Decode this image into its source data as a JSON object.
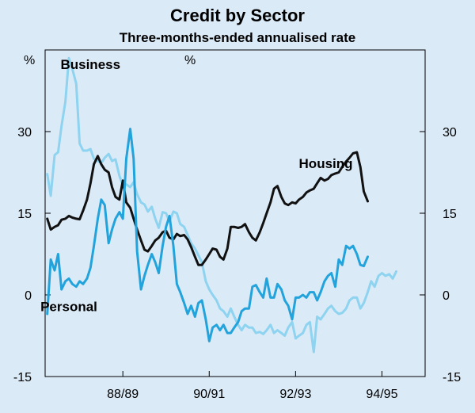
{
  "chart_data": {
    "type": "line",
    "title": "Credit by Sector",
    "subtitle": "Three-months-ended annualised rate",
    "y_unit_left": "%",
    "y_unit_right": "%",
    "ylim": [
      -15,
      45
    ],
    "yticks": [
      -15,
      0,
      15,
      30
    ],
    "xlim": [
      1986.7,
      1995.5
    ],
    "xticks": [
      {
        "label": "88/89",
        "x": 1988.5
      },
      {
        "label": "90/91",
        "x": 1990.5
      },
      {
        "label": "92/93",
        "x": 1992.5
      },
      {
        "label": "94/95",
        "x": 1994.5
      }
    ],
    "grid": false,
    "series": [
      {
        "name": "Business",
        "color": "#8ed3f0",
        "label_x": 1987.75,
        "label_y": 41.5,
        "values": [
          [
            1986.75,
            22.2
          ],
          [
            1986.83,
            18.2
          ],
          [
            1986.92,
            25.7
          ],
          [
            1987.0,
            26.2
          ],
          [
            1987.08,
            31.0
          ],
          [
            1987.17,
            35.5
          ],
          [
            1987.25,
            43.5
          ],
          [
            1987.33,
            41.5
          ],
          [
            1987.42,
            38.8
          ],
          [
            1987.5,
            27.8
          ],
          [
            1987.58,
            26.5
          ],
          [
            1987.67,
            26.5
          ],
          [
            1987.75,
            26.8
          ],
          [
            1987.83,
            25.0
          ],
          [
            1987.92,
            24.6
          ],
          [
            1988.0,
            24.2
          ],
          [
            1988.08,
            25.2
          ],
          [
            1988.17,
            25.9
          ],
          [
            1988.25,
            24.6
          ],
          [
            1988.33,
            24.9
          ],
          [
            1988.42,
            21.9
          ],
          [
            1988.5,
            20.1
          ],
          [
            1988.58,
            20.3
          ],
          [
            1988.67,
            19.8
          ],
          [
            1988.75,
            20.7
          ],
          [
            1988.83,
            18.5
          ],
          [
            1988.92,
            17.0
          ],
          [
            1989.0,
            16.6
          ],
          [
            1989.08,
            15.3
          ],
          [
            1989.17,
            16.2
          ],
          [
            1989.25,
            14.0
          ],
          [
            1989.33,
            12.3
          ],
          [
            1989.42,
            15.2
          ],
          [
            1989.5,
            15.0
          ],
          [
            1989.58,
            13.5
          ],
          [
            1989.67,
            15.3
          ],
          [
            1989.75,
            15.0
          ],
          [
            1989.83,
            13.0
          ],
          [
            1989.92,
            12.5
          ],
          [
            1990.0,
            11.0
          ],
          [
            1990.08,
            9.5
          ],
          [
            1990.17,
            8.5
          ],
          [
            1990.25,
            7.3
          ],
          [
            1990.33,
            6.0
          ],
          [
            1990.42,
            2.5
          ],
          [
            1990.5,
            1.0
          ],
          [
            1990.58,
            0.0
          ],
          [
            1990.67,
            -1.0
          ],
          [
            1990.75,
            -2.5
          ],
          [
            1990.83,
            -3.0
          ],
          [
            1990.92,
            -4.0
          ],
          [
            1991.0,
            -2.5
          ],
          [
            1991.08,
            -4.0
          ],
          [
            1991.17,
            -5.5
          ],
          [
            1991.25,
            -6.5
          ],
          [
            1991.33,
            -5.5
          ],
          [
            1991.42,
            -6.0
          ],
          [
            1991.5,
            -6.0
          ],
          [
            1991.58,
            -7.0
          ],
          [
            1991.67,
            -6.8
          ],
          [
            1991.75,
            -7.2
          ],
          [
            1991.83,
            -6.5
          ],
          [
            1991.92,
            -5.5
          ],
          [
            1992.0,
            -7.0
          ],
          [
            1992.08,
            -6.5
          ],
          [
            1992.17,
            -7.0
          ],
          [
            1992.25,
            -7.5
          ],
          [
            1992.33,
            -6.0
          ],
          [
            1992.42,
            -5.0
          ],
          [
            1992.5,
            -8.0
          ],
          [
            1992.58,
            -7.5
          ],
          [
            1992.67,
            -7.0
          ],
          [
            1992.75,
            -5.5
          ],
          [
            1992.83,
            -5.0
          ],
          [
            1992.92,
            -10.5
          ],
          [
            1993.0,
            -4.0
          ],
          [
            1993.08,
            -4.5
          ],
          [
            1993.17,
            -3.5
          ],
          [
            1993.25,
            -2.5
          ],
          [
            1993.33,
            -2.0
          ],
          [
            1993.42,
            -3.0
          ],
          [
            1993.5,
            -3.5
          ],
          [
            1993.58,
            -3.3
          ],
          [
            1993.67,
            -2.5
          ],
          [
            1993.75,
            -1.0
          ],
          [
            1993.83,
            -0.5
          ],
          [
            1993.92,
            -0.5
          ],
          [
            1994.0,
            -2.5
          ],
          [
            1994.08,
            -1.5
          ],
          [
            1994.17,
            0.5
          ],
          [
            1994.25,
            2.5
          ],
          [
            1994.33,
            1.5
          ],
          [
            1994.42,
            3.5
          ],
          [
            1994.5,
            4.0
          ],
          [
            1994.58,
            3.5
          ],
          [
            1994.67,
            3.8
          ],
          [
            1994.75,
            3.0
          ],
          [
            1994.83,
            4.3
          ]
        ]
      },
      {
        "name": "Housing",
        "color": "#111111",
        "label_x": 1993.2,
        "label_y": 23.3,
        "values": [
          [
            1986.75,
            14.0
          ],
          [
            1986.83,
            12.0
          ],
          [
            1986.92,
            12.5
          ],
          [
            1987.0,
            12.8
          ],
          [
            1987.08,
            13.8
          ],
          [
            1987.17,
            14.0
          ],
          [
            1987.25,
            14.5
          ],
          [
            1987.33,
            14.2
          ],
          [
            1987.42,
            14.0
          ],
          [
            1987.5,
            13.9
          ],
          [
            1987.58,
            15.5
          ],
          [
            1987.67,
            17.5
          ],
          [
            1987.75,
            20.5
          ],
          [
            1987.83,
            24.0
          ],
          [
            1987.92,
            25.5
          ],
          [
            1988.0,
            24.0
          ],
          [
            1988.08,
            23.0
          ],
          [
            1988.17,
            22.5
          ],
          [
            1988.25,
            19.8
          ],
          [
            1988.33,
            18.0
          ],
          [
            1988.42,
            17.5
          ],
          [
            1988.5,
            21.0
          ],
          [
            1988.58,
            17.0
          ],
          [
            1988.67,
            16.0
          ],
          [
            1988.75,
            14.0
          ],
          [
            1988.83,
            12.0
          ],
          [
            1988.92,
            10.0
          ],
          [
            1989.0,
            8.3
          ],
          [
            1989.08,
            8.0
          ],
          [
            1989.17,
            9.0
          ],
          [
            1989.25,
            10.0
          ],
          [
            1989.33,
            10.5
          ],
          [
            1989.42,
            11.5
          ],
          [
            1989.5,
            11.8
          ],
          [
            1989.58,
            10.5
          ],
          [
            1989.67,
            10.2
          ],
          [
            1989.75,
            11.2
          ],
          [
            1989.83,
            10.8
          ],
          [
            1989.92,
            11.0
          ],
          [
            1990.0,
            10.2
          ],
          [
            1990.08,
            8.8
          ],
          [
            1990.17,
            7.0
          ],
          [
            1990.25,
            5.5
          ],
          [
            1990.33,
            5.5
          ],
          [
            1990.42,
            6.5
          ],
          [
            1990.5,
            7.5
          ],
          [
            1990.58,
            8.5
          ],
          [
            1990.67,
            8.3
          ],
          [
            1990.75,
            7.0
          ],
          [
            1990.83,
            6.5
          ],
          [
            1990.92,
            8.5
          ],
          [
            1991.0,
            12.5
          ],
          [
            1991.08,
            12.5
          ],
          [
            1991.17,
            12.3
          ],
          [
            1991.25,
            12.5
          ],
          [
            1991.33,
            13.0
          ],
          [
            1991.42,
            11.5
          ],
          [
            1991.5,
            10.5
          ],
          [
            1991.58,
            10.0
          ],
          [
            1991.67,
            11.5
          ],
          [
            1991.75,
            13.2
          ],
          [
            1991.83,
            15.0
          ],
          [
            1991.92,
            17.0
          ],
          [
            1992.0,
            19.5
          ],
          [
            1992.08,
            20.0
          ],
          [
            1992.17,
            18.0
          ],
          [
            1992.25,
            16.8
          ],
          [
            1992.33,
            16.5
          ],
          [
            1992.42,
            17.0
          ],
          [
            1992.5,
            16.8
          ],
          [
            1992.58,
            17.5
          ],
          [
            1992.67,
            18.0
          ],
          [
            1992.75,
            18.8
          ],
          [
            1992.83,
            19.2
          ],
          [
            1992.92,
            19.5
          ],
          [
            1993.0,
            20.5
          ],
          [
            1993.08,
            21.5
          ],
          [
            1993.17,
            21.0
          ],
          [
            1993.25,
            21.3
          ],
          [
            1993.33,
            22.0
          ],
          [
            1993.42,
            22.3
          ],
          [
            1993.5,
            22.5
          ],
          [
            1993.58,
            23.5
          ],
          [
            1993.67,
            24.5
          ],
          [
            1993.75,
            25.2
          ],
          [
            1993.83,
            26.0
          ],
          [
            1993.92,
            26.2
          ],
          [
            1994.0,
            23.5
          ],
          [
            1994.08,
            19.0
          ],
          [
            1994.17,
            17.2
          ]
        ]
      },
      {
        "name": "Personal",
        "color": "#22a3dc",
        "label_x": 1987.25,
        "label_y": -3.0,
        "values": [
          [
            1986.75,
            -3.5
          ],
          [
            1986.83,
            6.5
          ],
          [
            1986.92,
            4.5
          ],
          [
            1987.0,
            7.5
          ],
          [
            1987.08,
            1.0
          ],
          [
            1987.17,
            2.5
          ],
          [
            1987.25,
            3.0
          ],
          [
            1987.33,
            2.0
          ],
          [
            1987.42,
            1.5
          ],
          [
            1987.5,
            2.5
          ],
          [
            1987.58,
            2.0
          ],
          [
            1987.67,
            3.0
          ],
          [
            1987.75,
            5.0
          ],
          [
            1987.83,
            9.0
          ],
          [
            1987.92,
            14.0
          ],
          [
            1988.0,
            17.5
          ],
          [
            1988.08,
            16.5
          ],
          [
            1988.17,
            9.5
          ],
          [
            1988.25,
            12.0
          ],
          [
            1988.33,
            14.0
          ],
          [
            1988.42,
            15.2
          ],
          [
            1988.5,
            14.0
          ],
          [
            1988.58,
            25.0
          ],
          [
            1988.67,
            30.5
          ],
          [
            1988.75,
            25.0
          ],
          [
            1988.83,
            8.0
          ],
          [
            1988.92,
            1.0
          ],
          [
            1989.0,
            3.5
          ],
          [
            1989.08,
            5.5
          ],
          [
            1989.17,
            7.5
          ],
          [
            1989.25,
            6.0
          ],
          [
            1989.33,
            4.0
          ],
          [
            1989.42,
            9.0
          ],
          [
            1989.5,
            12.5
          ],
          [
            1989.58,
            14.5
          ],
          [
            1989.67,
            9.0
          ],
          [
            1989.75,
            2.0
          ],
          [
            1989.83,
            0.5
          ],
          [
            1989.92,
            -1.5
          ],
          [
            1990.0,
            -3.5
          ],
          [
            1990.08,
            -2.0
          ],
          [
            1990.17,
            -4.0
          ],
          [
            1990.25,
            -1.5
          ],
          [
            1990.33,
            -1.0
          ],
          [
            1990.42,
            -4.5
          ],
          [
            1990.5,
            -8.5
          ],
          [
            1990.58,
            -6.0
          ],
          [
            1990.67,
            -5.5
          ],
          [
            1990.75,
            -6.5
          ],
          [
            1990.83,
            -5.5
          ],
          [
            1990.92,
            -7.0
          ],
          [
            1991.0,
            -7.0
          ],
          [
            1991.08,
            -6.0
          ],
          [
            1991.17,
            -5.0
          ],
          [
            1991.25,
            -3.0
          ],
          [
            1991.33,
            -2.5
          ],
          [
            1991.42,
            -2.5
          ],
          [
            1991.5,
            1.5
          ],
          [
            1991.58,
            1.8
          ],
          [
            1991.67,
            0.5
          ],
          [
            1991.75,
            -0.5
          ],
          [
            1991.83,
            3.0
          ],
          [
            1991.92,
            -0.5
          ],
          [
            1992.0,
            -0.5
          ],
          [
            1992.08,
            2.0
          ],
          [
            1992.17,
            1.0
          ],
          [
            1992.25,
            -1.0
          ],
          [
            1992.33,
            -2.0
          ],
          [
            1992.42,
            -4.5
          ],
          [
            1992.5,
            -0.5
          ],
          [
            1992.58,
            -0.5
          ],
          [
            1992.67,
            0.0
          ],
          [
            1992.75,
            -0.5
          ],
          [
            1992.83,
            0.5
          ],
          [
            1992.92,
            0.5
          ],
          [
            1993.0,
            -1.0
          ],
          [
            1993.08,
            0.5
          ],
          [
            1993.17,
            2.5
          ],
          [
            1993.25,
            3.5
          ],
          [
            1993.33,
            4.0
          ],
          [
            1993.42,
            1.5
          ],
          [
            1993.5,
            6.5
          ],
          [
            1993.58,
            5.5
          ],
          [
            1993.67,
            9.0
          ],
          [
            1993.75,
            8.5
          ],
          [
            1993.83,
            9.0
          ],
          [
            1993.92,
            7.5
          ],
          [
            1994.0,
            5.5
          ],
          [
            1994.08,
            5.3
          ],
          [
            1994.17,
            7.0
          ]
        ]
      }
    ]
  }
}
